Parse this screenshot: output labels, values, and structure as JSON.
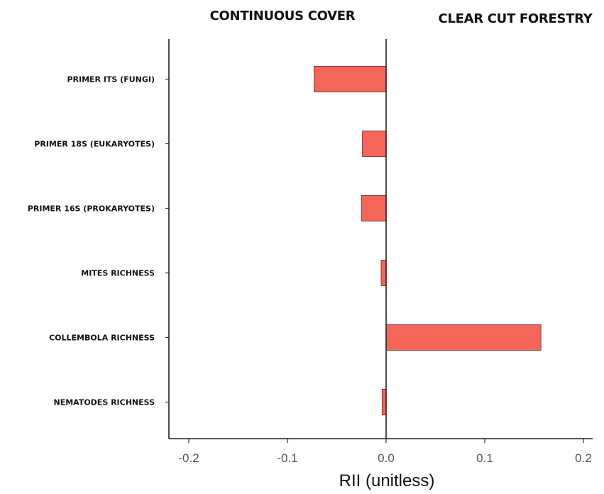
{
  "chart_data": {
    "type": "bar",
    "orientation": "horizontal",
    "headers": {
      "left": "CONTINUOUS COVER",
      "right": "CLEAR CUT FORESTRY"
    },
    "categories": [
      "PRIMER ITS (FUNGI)",
      "PRIMER 18S (EUKARYOTES)",
      "PRIMER 16S (PROKARYOTES)",
      "MITES RICHNESS",
      "COLLEMBOLA RICHNESS",
      "NEMATODES RICHNESS"
    ],
    "values": [
      -0.073,
      -0.024,
      -0.025,
      -0.005,
      0.157,
      -0.004
    ],
    "xlabel": "RII (unitless)",
    "ylabel": "",
    "xlim": [
      -0.22,
      0.22
    ],
    "xticks": [
      -0.2,
      -0.1,
      0.0,
      0.1,
      0.2
    ],
    "xtick_labels": [
      "-0.2",
      "-0.1",
      "0.0",
      "0.1",
      "0.2"
    ],
    "bar_color": "#f4665a",
    "grid": false,
    "legend": "none"
  }
}
